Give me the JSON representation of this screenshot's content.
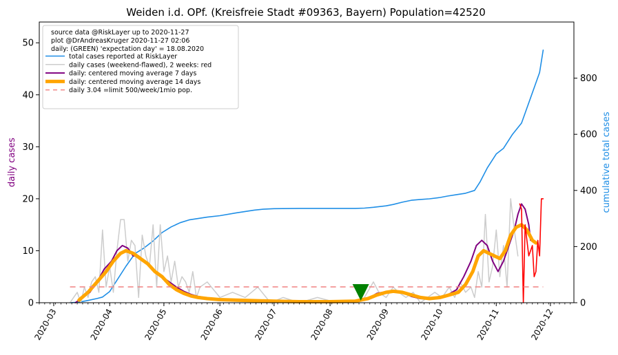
{
  "chart_data": {
    "type": "line",
    "title": "Weiden i.d. OPf. (Kreisfreie Stadt #09363, Bayern) Population=42520",
    "ylabel_left": "daily cases",
    "ylabel_right": "cumulative total cases",
    "ylim_left": [
      0,
      54
    ],
    "ylim_right": [
      0,
      1000
    ],
    "xlim": [
      "2020-02-22",
      "2020-12-14"
    ],
    "left_ticks": [
      "0",
      "10",
      "20",
      "30",
      "40",
      "50"
    ],
    "right_ticks": [
      "0",
      "200",
      "400",
      "600",
      "800"
    ],
    "x_ticks": [
      "2020-03",
      "2020-04",
      "2020-05",
      "2020-06",
      "2020-07",
      "2020-08",
      "2020-09",
      "2020-10",
      "2020-11",
      "2020-12"
    ],
    "legend_position": "top-left",
    "legend_text": [
      "source data @RiskLayer up to 2020-11-27",
      "plot @DrAndreasKruger 2020-11-27 02:06",
      "daily: (GREEN) 'expectation day' = 18.08.2020"
    ],
    "expectation_day": "2020-08-18",
    "series": [
      {
        "name": "total cases reported at RiskLayer",
        "axis": "right",
        "color": "#1e8ee6",
        "width": 1.6,
        "x": [
          "2020-03-10",
          "2020-03-15",
          "2020-03-20",
          "2020-03-25",
          "2020-03-28",
          "2020-04-01",
          "2020-04-05",
          "2020-04-10",
          "2020-04-15",
          "2020-04-20",
          "2020-04-25",
          "2020-04-30",
          "2020-05-05",
          "2020-05-10",
          "2020-05-15",
          "2020-05-20",
          "2020-05-25",
          "2020-06-01",
          "2020-06-10",
          "2020-06-20",
          "2020-06-25",
          "2020-07-01",
          "2020-07-15",
          "2020-08-01",
          "2020-08-15",
          "2020-08-20",
          "2020-08-25",
          "2020-09-01",
          "2020-09-05",
          "2020-09-10",
          "2020-09-15",
          "2020-09-20",
          "2020-09-25",
          "2020-10-01",
          "2020-10-05",
          "2020-10-10",
          "2020-10-15",
          "2020-10-20",
          "2020-10-23",
          "2020-10-27",
          "2020-11-01",
          "2020-11-05",
          "2020-11-10",
          "2020-11-15",
          "2020-11-20",
          "2020-11-25",
          "2020-11-27"
        ],
        "y": [
          0,
          2,
          8,
          15,
          20,
          40,
          80,
          130,
          175,
          195,
          220,
          250,
          270,
          285,
          295,
          300,
          305,
          310,
          320,
          330,
          333,
          335,
          336,
          336,
          336,
          337,
          340,
          345,
          350,
          358,
          365,
          368,
          370,
          375,
          380,
          385,
          390,
          400,
          430,
          480,
          530,
          550,
          600,
          640,
          730,
          820,
          900
        ]
      },
      {
        "name": "daily cases (weekend-flawed), 2 weeks: red",
        "axis": "left",
        "color": "#cccccc",
        "width": 1.5,
        "x": [
          "2020-03-10",
          "2020-03-12",
          "2020-03-14",
          "2020-03-16",
          "2020-03-18",
          "2020-03-20",
          "2020-03-22",
          "2020-03-24",
          "2020-03-26",
          "2020-03-28",
          "2020-03-30",
          "2020-04-01",
          "2020-04-03",
          "2020-04-05",
          "2020-04-07",
          "2020-04-09",
          "2020-04-11",
          "2020-04-13",
          "2020-04-15",
          "2020-04-17",
          "2020-04-19",
          "2020-04-21",
          "2020-04-23",
          "2020-04-25",
          "2020-04-27",
          "2020-04-29",
          "2020-05-01",
          "2020-05-03",
          "2020-05-05",
          "2020-05-07",
          "2020-05-09",
          "2020-05-11",
          "2020-05-13",
          "2020-05-15",
          "2020-05-17",
          "2020-05-19",
          "2020-05-21",
          "2020-05-25",
          "2020-06-01",
          "2020-06-08",
          "2020-06-15",
          "2020-06-22",
          "2020-06-29",
          "2020-07-06",
          "2020-07-15",
          "2020-07-25",
          "2020-08-05",
          "2020-08-15",
          "2020-08-20",
          "2020-08-25",
          "2020-08-28",
          "2020-09-01",
          "2020-09-05",
          "2020-09-08",
          "2020-09-12",
          "2020-09-16",
          "2020-09-20",
          "2020-09-24",
          "2020-09-28",
          "2020-10-02",
          "2020-10-06",
          "2020-10-09",
          "2020-10-12",
          "2020-10-15",
          "2020-10-18",
          "2020-10-20",
          "2020-10-22",
          "2020-10-24",
          "2020-10-26",
          "2020-10-28",
          "2020-10-30",
          "2020-11-01",
          "2020-11-03",
          "2020-11-05",
          "2020-11-07",
          "2020-11-09",
          "2020-11-11",
          "2020-11-13"
        ],
        "y": [
          0,
          1,
          2,
          0,
          3,
          1,
          4,
          5,
          2,
          14,
          3,
          7,
          2,
          10,
          16,
          16,
          8,
          12,
          11,
          1,
          13,
          9,
          7,
          15,
          3,
          15,
          6,
          9,
          4,
          8,
          3,
          5,
          4,
          2,
          6,
          1,
          3,
          4,
          1,
          2,
          1,
          3,
          0,
          1,
          0,
          1,
          0,
          0,
          1,
          4,
          2,
          1,
          3,
          2,
          1,
          2,
          0,
          1,
          2,
          1,
          3,
          1,
          4,
          2,
          3,
          1,
          6,
          3,
          17,
          4,
          7,
          14,
          5,
          11,
          3,
          20,
          14,
          9
        ]
      },
      {
        "name": "daily: centered moving average 7 days",
        "axis": "left",
        "color": "#800080",
        "width": 2,
        "x": [
          "2020-03-13",
          "2020-03-17",
          "2020-03-21",
          "2020-03-25",
          "2020-03-29",
          "2020-04-02",
          "2020-04-05",
          "2020-04-08",
          "2020-04-11",
          "2020-04-14",
          "2020-04-17",
          "2020-04-20",
          "2020-04-23",
          "2020-04-26",
          "2020-04-30",
          "2020-05-04",
          "2020-05-08",
          "2020-05-12",
          "2020-05-16",
          "2020-05-20",
          "2020-05-25",
          "2020-06-01",
          "2020-06-10",
          "2020-06-20",
          "2020-07-01",
          "2020-07-15",
          "2020-08-01",
          "2020-08-15",
          "2020-08-22",
          "2020-08-27",
          "2020-09-01",
          "2020-09-05",
          "2020-09-10",
          "2020-09-15",
          "2020-09-20",
          "2020-09-25",
          "2020-10-01",
          "2020-10-05",
          "2020-10-10",
          "2020-10-14",
          "2020-10-18",
          "2020-10-21",
          "2020-10-24",
          "2020-10-27",
          "2020-10-30",
          "2020-11-02",
          "2020-11-05",
          "2020-11-08",
          "2020-11-11",
          "2020-11-13",
          "2020-11-15",
          "2020-11-17",
          "2020-11-19",
          "2020-11-20"
        ],
        "y": [
          0,
          1,
          2,
          4,
          6.5,
          8,
          10,
          11,
          10.5,
          9,
          9,
          8,
          7,
          6,
          5,
          4,
          3,
          2.2,
          1.6,
          1.2,
          0.9,
          0.6,
          0.5,
          0.4,
          0.3,
          0.2,
          0.2,
          0.2,
          0.8,
          1.8,
          2.1,
          2.3,
          2.0,
          1.2,
          0.8,
          0.7,
          1.0,
          1.5,
          2.5,
          5,
          8,
          11,
          12,
          11,
          8,
          6,
          8,
          11,
          14,
          17,
          19,
          18,
          15,
          12
        ]
      },
      {
        "name": "daily: centered moving average 14 days",
        "axis": "left",
        "color": "#ffa500",
        "width": 5,
        "x": [
          "2020-03-15",
          "2020-03-20",
          "2020-03-25",
          "2020-03-30",
          "2020-04-03",
          "2020-04-07",
          "2020-04-10",
          "2020-04-14",
          "2020-04-18",
          "2020-04-22",
          "2020-04-26",
          "2020-04-30",
          "2020-05-04",
          "2020-05-08",
          "2020-05-12",
          "2020-05-16",
          "2020-05-20",
          "2020-05-25",
          "2020-06-01",
          "2020-06-10",
          "2020-06-20",
          "2020-07-01",
          "2020-07-15",
          "2020-08-01",
          "2020-08-15",
          "2020-08-22",
          "2020-08-27",
          "2020-09-01",
          "2020-09-05",
          "2020-09-10",
          "2020-09-15",
          "2020-09-20",
          "2020-09-25",
          "2020-10-01",
          "2020-10-06",
          "2020-10-11",
          "2020-10-15",
          "2020-10-19",
          "2020-10-22",
          "2020-10-25",
          "2020-10-28",
          "2020-10-31",
          "2020-11-03",
          "2020-11-06",
          "2020-11-09",
          "2020-11-12",
          "2020-11-15",
          "2020-11-18",
          "2020-11-21",
          "2020-11-23"
        ],
        "y": [
          0.5,
          2,
          4,
          6,
          8,
          9.5,
          10,
          9.5,
          8.5,
          7.5,
          6,
          5,
          3.5,
          2.5,
          1.8,
          1.3,
          1,
          0.8,
          0.6,
          0.5,
          0.4,
          0.3,
          0.2,
          0.2,
          0.3,
          0.8,
          1.5,
          2,
          2.2,
          2,
          1.5,
          1,
          0.8,
          1,
          1.5,
          2,
          3.5,
          6,
          9,
          10,
          9.5,
          9,
          8.5,
          10,
          13,
          14.5,
          15,
          14,
          12,
          11.5
        ]
      },
      {
        "name": "daily: last 2 weeks (red)",
        "axis": "left",
        "color": "#ff0000",
        "width": 1.6,
        "legend": false,
        "x": [
          "2020-11-14",
          "2020-11-15",
          "2020-11-16",
          "2020-11-17",
          "2020-11-18",
          "2020-11-19",
          "2020-11-20",
          "2020-11-21",
          "2020-11-22",
          "2020-11-23",
          "2020-11-24",
          "2020-11-25",
          "2020-11-26",
          "2020-11-27"
        ],
        "y": [
          19,
          18,
          0,
          15,
          12,
          9,
          10,
          11,
          5,
          6,
          12,
          9,
          20,
          20
        ]
      },
      {
        "name": "daily 3.04 =limit 500/week/1mio pop.",
        "axis": "left",
        "color": "#f08080",
        "width": 1.4,
        "dashed": true,
        "x": [
          "2020-03-10",
          "2020-11-27"
        ],
        "y": [
          3.04,
          3.04
        ]
      }
    ]
  }
}
